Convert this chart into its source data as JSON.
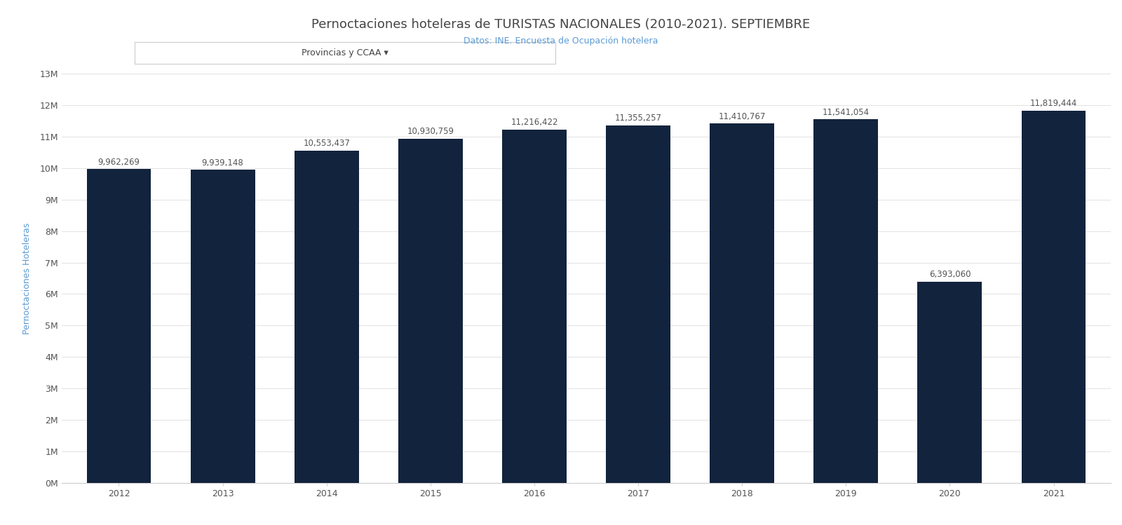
{
  "title": "Pernoctaciones hoteleras de TURISTAS NACIONALES (2010-2021). SEPTIEMBRE",
  "subtitle": "Datos: INE. Encuesta de Ocupación hotelera",
  "ylabel": "Pernoctaciones Hoteleras",
  "categories": [
    2012,
    2013,
    2014,
    2015,
    2016,
    2017,
    2018,
    2019,
    2020,
    2021
  ],
  "values": [
    9962269,
    9939148,
    10553437,
    10930759,
    11216422,
    11355257,
    11410767,
    11541054,
    6393060,
    11819444
  ],
  "bar_color": "#12233d",
  "background_color": "#ffffff",
  "ylim": [
    0,
    13000000
  ],
  "yticks": [
    0,
    1000000,
    2000000,
    3000000,
    4000000,
    5000000,
    6000000,
    7000000,
    8000000,
    9000000,
    10000000,
    11000000,
    12000000,
    13000000
  ],
  "ytick_labels": [
    "0M",
    "1M",
    "2M",
    "3M",
    "4M",
    "5M",
    "6M",
    "7M",
    "8M",
    "9M",
    "10M",
    "11M",
    "12M",
    "13M"
  ],
  "filter_label": "Provincias y CCAA ▾",
  "title_fontsize": 13,
  "subtitle_fontsize": 9,
  "axis_label_fontsize": 9,
  "tick_fontsize": 9,
  "bar_label_fontsize": 8.5
}
